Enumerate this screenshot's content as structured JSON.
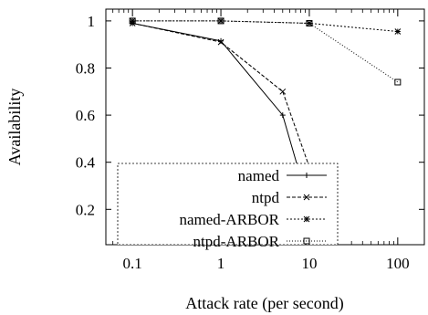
{
  "chart_data": {
    "type": "line",
    "title": "",
    "xlabel": "Attack rate (per second)",
    "ylabel": "Availability",
    "xscale": "log",
    "xlim": [
      0.05,
      200
    ],
    "ylim": [
      0.05,
      1.05
    ],
    "xticks": [
      0.1,
      1,
      10,
      100
    ],
    "xtick_labels": [
      "0.1",
      "1",
      "10",
      "100"
    ],
    "yticks": [
      0.2,
      0.4,
      0.6,
      0.8,
      1.0
    ],
    "ytick_labels": [
      "0.2",
      "0.4",
      "0.6",
      "0.8",
      "1"
    ],
    "grid": false,
    "legend_position": "bottom-left",
    "series": [
      {
        "name": "named",
        "style": "solid",
        "marker": "+",
        "color": "#000000",
        "points": [
          [
            0.1,
            0.99
          ],
          [
            1,
            0.915
          ],
          [
            5,
            0.6
          ],
          [
            10,
            0.21
          ]
        ]
      },
      {
        "name": "ntpd",
        "style": "dashed",
        "marker": "x",
        "color": "#000000",
        "points": [
          [
            0.1,
            0.99
          ],
          [
            1,
            0.91
          ],
          [
            5,
            0.7
          ],
          [
            10,
            0.38
          ]
        ]
      },
      {
        "name": "named-ARBOR",
        "style": "dotted",
        "marker": "asterisk",
        "color": "#000000",
        "points": [
          [
            0.1,
            1.0
          ],
          [
            1,
            1.0
          ],
          [
            10,
            0.99
          ],
          [
            100,
            0.955
          ]
        ]
      },
      {
        "name": "ntpd-ARBOR",
        "style": "fine-dotted",
        "marker": "square",
        "color": "#000000",
        "points": [
          [
            0.1,
            1.0
          ],
          [
            1,
            1.0
          ],
          [
            10,
            0.99
          ],
          [
            100,
            0.74
          ]
        ]
      }
    ]
  }
}
